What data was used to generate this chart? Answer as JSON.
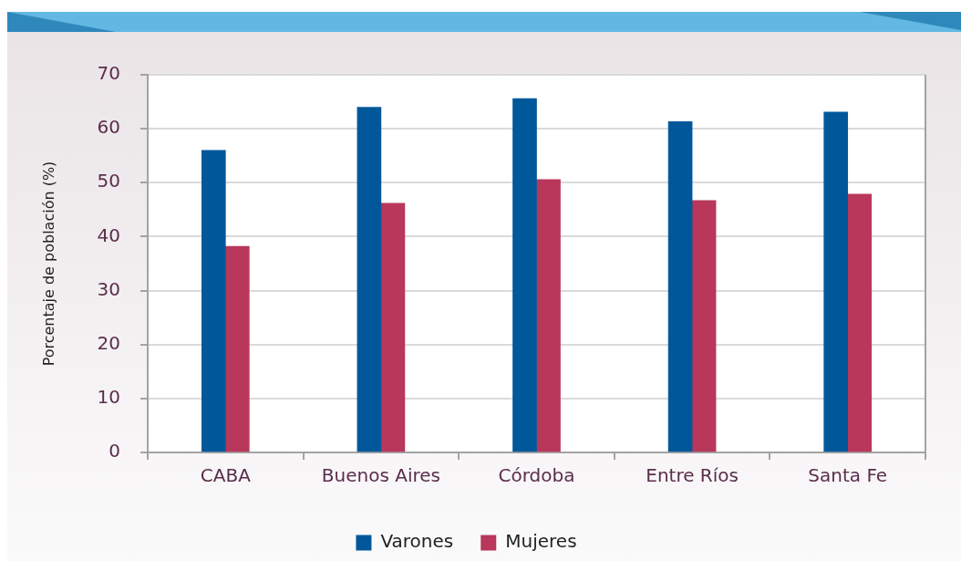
{
  "chart_data": {
    "type": "bar",
    "ylabel": "Porcentaje de población (%)",
    "categories": [
      "CABA",
      "Buenos Aires",
      "Córdoba",
      "Entre Ríos",
      "Santa Fe"
    ],
    "series": [
      {
        "name": "Varones",
        "color": "#00589a",
        "values": [
          56,
          64,
          65.6,
          61.3,
          63.1
        ]
      },
      {
        "name": "Mujeres",
        "color": "#b8375a",
        "values": [
          38.2,
          46.2,
          50.6,
          46.7,
          47.9
        ]
      }
    ],
    "ylim": [
      0,
      70
    ],
    "yticks": [
      0,
      10,
      20,
      30,
      40,
      50,
      60,
      70
    ],
    "grid": "y",
    "legend": "bottom"
  }
}
